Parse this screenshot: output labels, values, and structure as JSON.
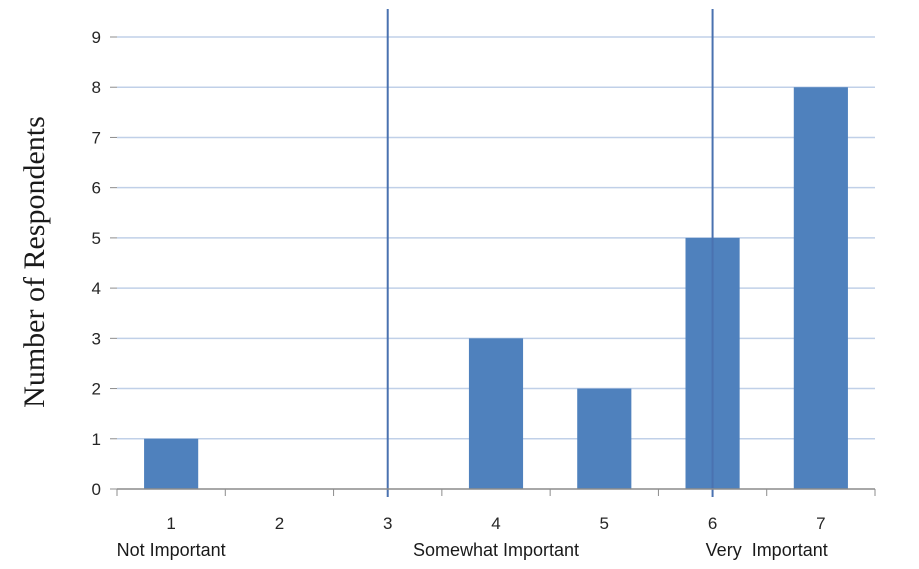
{
  "chart_data": {
    "type": "bar",
    "categories": [
      "1",
      "2",
      "3",
      "4",
      "5",
      "6",
      "7"
    ],
    "values": [
      1,
      0,
      0,
      3,
      2,
      5,
      8
    ],
    "title": "",
    "xlabel": "",
    "ylabel": "Number of Respondents",
    "ylim": [
      0,
      9
    ],
    "yticks": [
      "0",
      "1",
      "2",
      "3",
      "4",
      "5",
      "6",
      "7",
      "8",
      "9"
    ],
    "grid": true,
    "legend": "none",
    "group_labels": [
      {
        "text": "Not Important",
        "category": "1"
      },
      {
        "text": "Somewhat Important",
        "category": "4"
      },
      {
        "text": "Very  Important",
        "category": "6.5"
      }
    ],
    "group_dividers": [
      2.5,
      5.5
    ],
    "colors": {
      "bar": "#4f81bd",
      "grid": "#c0d0e8",
      "divider": "#4a72b0",
      "axis": "#8c8c8c"
    }
  }
}
